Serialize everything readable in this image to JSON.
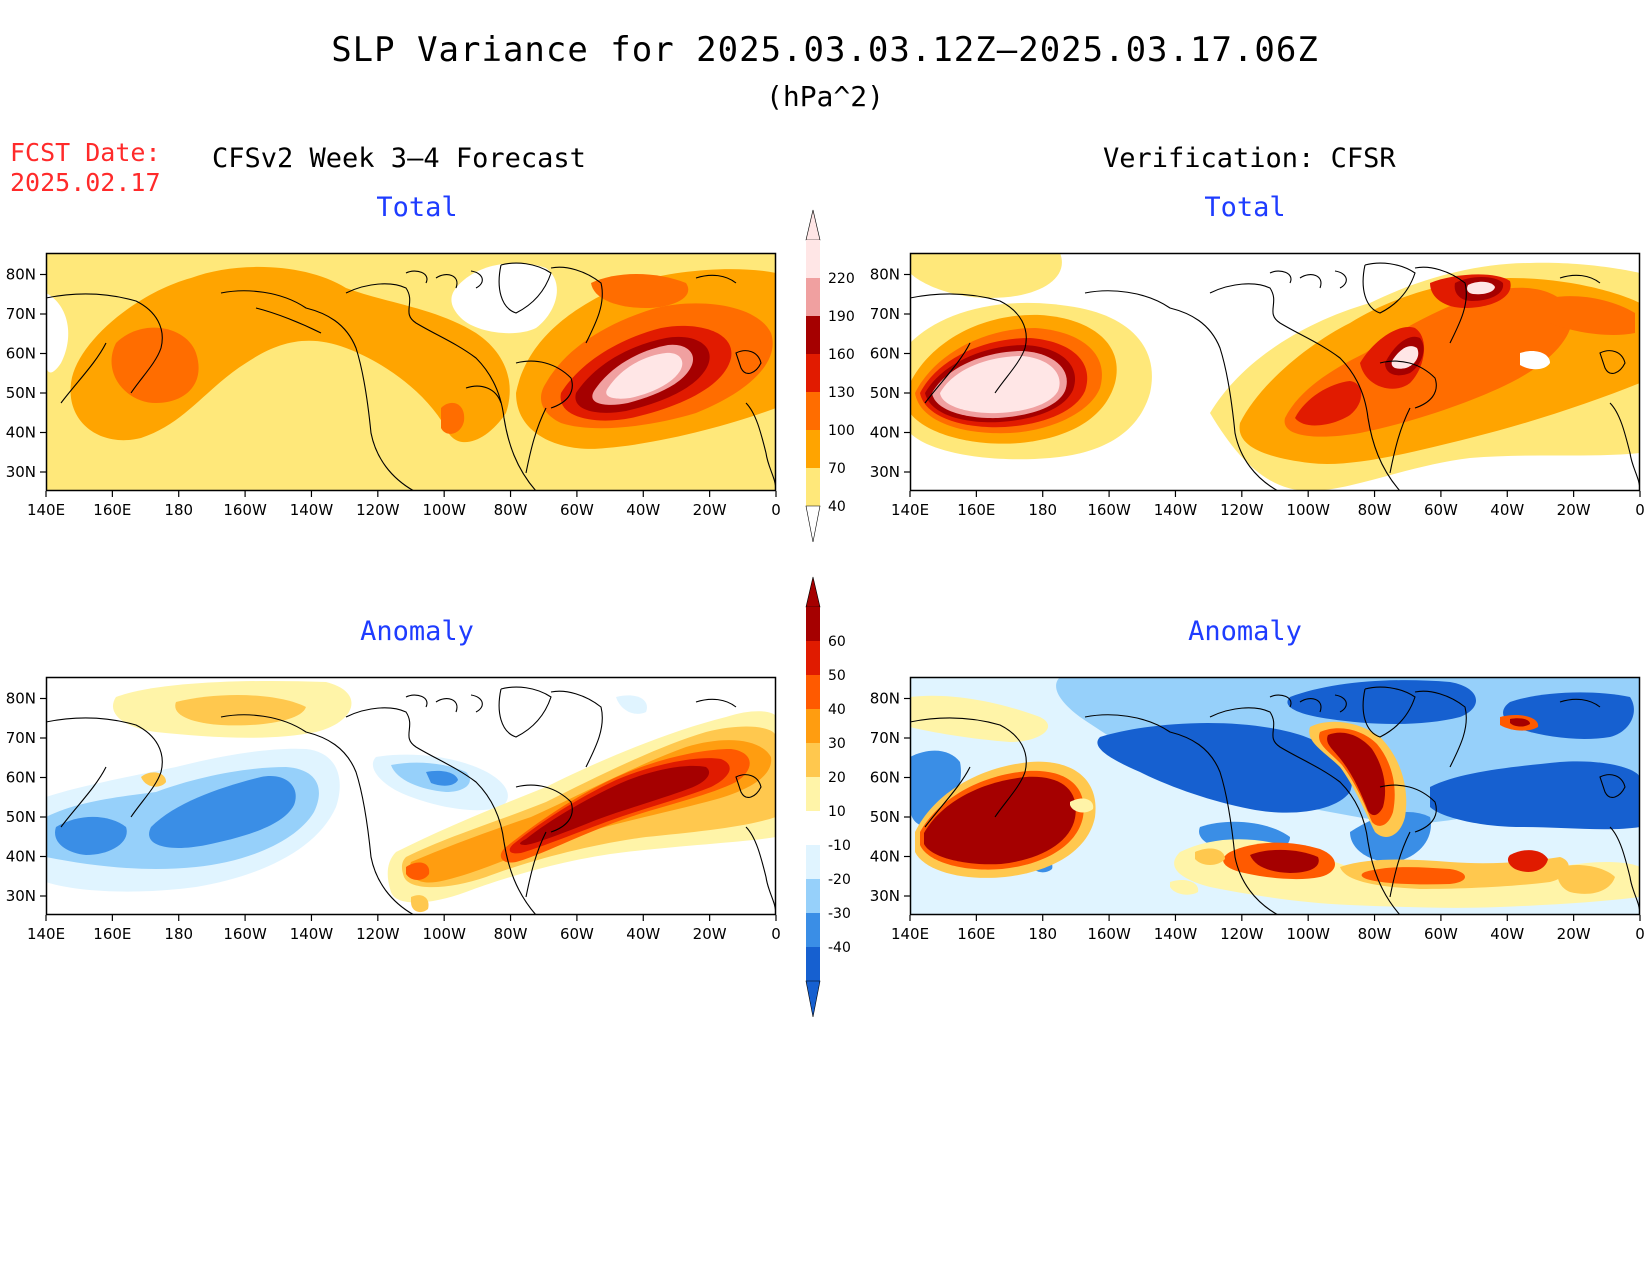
{
  "title": "SLP Variance for 2025.03.03.12Z–2025.03.17.06Z",
  "units": "(hPa^2)",
  "fcst_label": "FCST Date:",
  "fcst_date": "2025.02.17",
  "model_label": "CFSv2 Week 3–4 Forecast",
  "verif_label": "Verification: CFSR",
  "panels": {
    "total_fcst": {
      "title": "Total"
    },
    "total_verif": {
      "title": "Total"
    },
    "anom_fcst": {
      "title": "Anomaly"
    },
    "anom_verif": {
      "title": "Anomaly"
    }
  },
  "lon_labels": [
    "140E",
    "160E",
    "180",
    "160W",
    "140W",
    "120W",
    "100W",
    "80W",
    "60W",
    "40W",
    "20W",
    "0"
  ],
  "lat_labels": [
    "30N",
    "40N",
    "50N",
    "60N",
    "70N",
    "80N"
  ],
  "colorbars": {
    "total": {
      "labels": [
        "40",
        "70",
        "100",
        "130",
        "160",
        "190",
        "220"
      ],
      "colors": [
        "#ffe87a",
        "#ffa400",
        "#ff6d00",
        "#e11b00",
        "#a50000",
        "#f0a0a0",
        "#ffe6e6"
      ]
    },
    "anomaly": {
      "labels": [
        "-40",
        "-30",
        "-20",
        "-10",
        "10",
        "20",
        "30",
        "40",
        "50",
        "60"
      ],
      "colors": [
        "#1660d0",
        "#3a8ee6",
        "#96d0fa",
        "#e0f4ff",
        "#ffffff",
        "#fff4a8",
        "#ffc84e",
        "#ff9d10",
        "#ff5a00",
        "#e01b00",
        "#a50000"
      ]
    }
  }
}
